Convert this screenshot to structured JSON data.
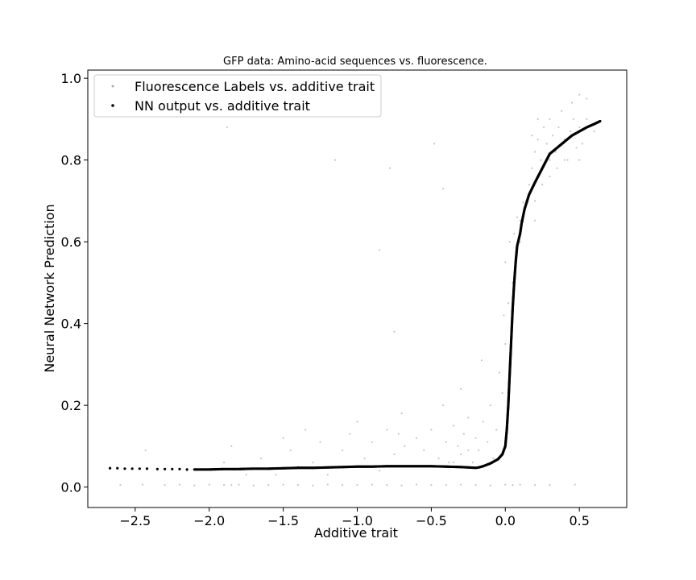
{
  "chart_data": {
    "type": "scatter",
    "title": "GFP data: Amino-acid sequences vs. fluorescence.",
    "xlabel": "Additive trait",
    "ylabel": "Neural Network Prediction",
    "xlim": [
      -2.82,
      0.82
    ],
    "ylim": [
      -0.05,
      1.02
    ],
    "x_ticks": [
      -2.5,
      -2.0,
      -1.5,
      -1.0,
      -0.5,
      0.0,
      0.5
    ],
    "x_tick_labels": [
      "−2.5",
      "−2.0",
      "−1.5",
      "−1.0",
      "−0.5",
      "0.0",
      "0.5"
    ],
    "y_ticks": [
      0.0,
      0.2,
      0.4,
      0.6,
      0.8,
      1.0
    ],
    "y_tick_labels": [
      "0.0",
      "0.2",
      "0.4",
      "0.6",
      "0.8",
      "1.0"
    ],
    "grid": false,
    "legend_position": "top-left",
    "series": [
      {
        "name": "Fluorescence Labels vs. additive trait",
        "color": "#808080",
        "marker": "small-dot",
        "points": [
          [
            -2.6,
            0.005
          ],
          [
            -2.45,
            0.006
          ],
          [
            -2.3,
            0.005
          ],
          [
            -2.2,
            0.006
          ],
          [
            -2.1,
            0.004
          ],
          [
            -2.0,
            0.006
          ],
          [
            -1.9,
            0.005
          ],
          [
            -1.85,
            0.005
          ],
          [
            -1.8,
            0.006
          ],
          [
            -1.7,
            0.004
          ],
          [
            -1.6,
            0.005
          ],
          [
            -1.5,
            0.006
          ],
          [
            -1.4,
            0.005
          ],
          [
            -1.3,
            0.004
          ],
          [
            -1.2,
            0.006
          ],
          [
            -1.1,
            0.005
          ],
          [
            -1.0,
            0.005
          ],
          [
            -0.9,
            0.006
          ],
          [
            -0.8,
            0.005
          ],
          [
            -0.7,
            0.004
          ],
          [
            -0.6,
            0.006
          ],
          [
            -0.5,
            0.005
          ],
          [
            -0.4,
            0.005
          ],
          [
            -0.3,
            0.006
          ],
          [
            -0.2,
            0.005
          ],
          [
            -0.1,
            0.004
          ],
          [
            0.0,
            0.006
          ],
          [
            0.05,
            0.005
          ],
          [
            0.1,
            0.006
          ],
          [
            0.2,
            0.005
          ],
          [
            0.3,
            0.005
          ],
          [
            0.47,
            0.006
          ],
          [
            -2.43,
            0.09
          ],
          [
            -2.15,
            0.04
          ],
          [
            -1.88,
            0.88
          ],
          [
            -1.9,
            0.06
          ],
          [
            -1.85,
            0.1
          ],
          [
            -1.75,
            0.03
          ],
          [
            -1.65,
            0.07
          ],
          [
            -1.55,
            0.03
          ],
          [
            -1.5,
            0.12
          ],
          [
            -1.45,
            0.09
          ],
          [
            -1.4,
            0.05
          ],
          [
            -1.35,
            0.14
          ],
          [
            -1.3,
            0.06
          ],
          [
            -1.25,
            0.11
          ],
          [
            -1.2,
            0.03
          ],
          [
            -1.15,
            0.8
          ],
          [
            -1.1,
            0.09
          ],
          [
            -1.05,
            0.13
          ],
          [
            -1.0,
            0.16
          ],
          [
            -0.95,
            0.07
          ],
          [
            -0.9,
            0.11
          ],
          [
            -0.85,
            0.04
          ],
          [
            -0.8,
            0.14
          ],
          [
            -0.78,
            0.78
          ],
          [
            -0.75,
            0.08
          ],
          [
            -0.7,
            0.18
          ],
          [
            -0.68,
            0.1
          ],
          [
            -0.65,
            0.05
          ],
          [
            -0.6,
            0.12
          ],
          [
            -0.55,
            0.09
          ],
          [
            -0.5,
            0.14
          ],
          [
            -0.48,
            0.84
          ],
          [
            -0.45,
            0.07
          ],
          [
            -0.42,
            0.2
          ],
          [
            -0.4,
            0.11
          ],
          [
            -0.38,
            0.06
          ],
          [
            -0.35,
            0.15
          ],
          [
            -0.32,
            0.1
          ],
          [
            -0.3,
            0.08
          ],
          [
            -0.28,
            0.13
          ],
          [
            -0.25,
            0.17
          ],
          [
            -0.22,
            0.06
          ],
          [
            -0.2,
            0.12
          ],
          [
            -0.18,
            0.09
          ],
          [
            -0.15,
            0.16
          ],
          [
            -0.12,
            0.11
          ],
          [
            -0.1,
            0.2
          ],
          [
            -0.08,
            0.07
          ],
          [
            -0.06,
            0.14
          ],
          [
            -0.04,
            0.28
          ],
          [
            -0.02,
            0.23
          ],
          [
            -0.16,
            0.31
          ],
          [
            -0.3,
            0.24
          ],
          [
            -0.85,
            0.58
          ],
          [
            -0.75,
            0.38
          ],
          [
            -0.42,
            0.73
          ],
          [
            -0.35,
            0.06
          ],
          [
            -0.25,
            0.09
          ],
          [
            -0.72,
            0.13
          ],
          [
            0.0,
            0.35
          ],
          [
            0.02,
            0.45
          ],
          [
            0.0,
            0.55
          ],
          [
            0.03,
            0.6
          ],
          [
            -0.01,
            0.42
          ],
          [
            0.05,
            0.5
          ],
          [
            0.06,
            0.62
          ],
          [
            0.08,
            0.66
          ],
          [
            0.1,
            0.6
          ],
          [
            0.12,
            0.65
          ],
          [
            0.14,
            0.7
          ],
          [
            0.16,
            0.74
          ],
          [
            0.18,
            0.78
          ],
          [
            0.2,
            0.82
          ],
          [
            0.22,
            0.85
          ],
          [
            0.24,
            0.8
          ],
          [
            0.26,
            0.88
          ],
          [
            0.28,
            0.84
          ],
          [
            0.3,
            0.9
          ],
          [
            0.32,
            0.86
          ],
          [
            0.34,
            0.82
          ],
          [
            0.36,
            0.88
          ],
          [
            0.38,
            0.92
          ],
          [
            0.4,
            0.85
          ],
          [
            0.42,
            0.8
          ],
          [
            0.44,
            0.87
          ],
          [
            0.46,
            0.9
          ],
          [
            0.48,
            0.83
          ],
          [
            0.5,
            0.88
          ],
          [
            0.52,
            0.84
          ],
          [
            0.55,
            0.9
          ],
          [
            0.6,
            0.87
          ],
          [
            0.3,
            0.76
          ],
          [
            0.35,
            0.78
          ],
          [
            0.45,
            0.94
          ],
          [
            0.25,
            0.74
          ],
          [
            0.2,
            0.7
          ],
          [
            0.15,
            0.696
          ],
          [
            0.12,
            0.696
          ],
          [
            0.1,
            0.652
          ],
          [
            0.2,
            0.652
          ],
          [
            0.3,
            0.8
          ],
          [
            0.4,
            0.8
          ],
          [
            0.5,
            0.8
          ],
          [
            0.5,
            0.96
          ],
          [
            0.55,
            0.95
          ],
          [
            0.22,
            0.9
          ],
          [
            0.18,
            0.86
          ]
        ]
      },
      {
        "name": "NN output vs. additive trait",
        "color": "#000000",
        "marker": "dot",
        "points": [
          [
            -2.67,
            0.046
          ],
          [
            -2.62,
            0.046
          ],
          [
            -2.57,
            0.045
          ],
          [
            -2.52,
            0.045
          ],
          [
            -2.47,
            0.045
          ],
          [
            -2.42,
            0.045
          ],
          [
            -2.35,
            0.044
          ],
          [
            -2.3,
            0.044
          ],
          [
            -2.25,
            0.044
          ],
          [
            -2.2,
            0.044
          ],
          [
            -2.15,
            0.043
          ],
          [
            -2.1,
            0.043
          ],
          [
            -2.0,
            0.043
          ],
          [
            -1.9,
            0.044
          ],
          [
            -1.8,
            0.044
          ],
          [
            -1.7,
            0.045
          ],
          [
            -1.6,
            0.045
          ],
          [
            -1.5,
            0.046
          ],
          [
            -1.4,
            0.047
          ],
          [
            -1.3,
            0.047
          ],
          [
            -1.2,
            0.048
          ],
          [
            -1.1,
            0.049
          ],
          [
            -1.0,
            0.05
          ],
          [
            -0.9,
            0.05
          ],
          [
            -0.8,
            0.051
          ],
          [
            -0.7,
            0.051
          ],
          [
            -0.6,
            0.051
          ],
          [
            -0.5,
            0.051
          ],
          [
            -0.4,
            0.05
          ],
          [
            -0.3,
            0.049
          ],
          [
            -0.25,
            0.048
          ],
          [
            -0.2,
            0.047
          ],
          [
            -0.18,
            0.048
          ],
          [
            -0.15,
            0.051
          ],
          [
            -0.1,
            0.058
          ],
          [
            -0.05,
            0.068
          ],
          [
            -0.02,
            0.08
          ],
          [
            0.0,
            0.1
          ],
          [
            0.01,
            0.14
          ],
          [
            0.02,
            0.2
          ],
          [
            0.03,
            0.28
          ],
          [
            0.04,
            0.36
          ],
          [
            0.05,
            0.44
          ],
          [
            0.06,
            0.5
          ],
          [
            0.07,
            0.55
          ],
          [
            0.08,
            0.59
          ],
          [
            0.1,
            0.62
          ],
          [
            0.11,
            0.645
          ],
          [
            0.13,
            0.68
          ],
          [
            0.16,
            0.715
          ],
          [
            0.2,
            0.745
          ],
          [
            0.25,
            0.78
          ],
          [
            0.3,
            0.815
          ],
          [
            0.35,
            0.83
          ],
          [
            0.4,
            0.845
          ],
          [
            0.45,
            0.86
          ],
          [
            0.5,
            0.87
          ],
          [
            0.55,
            0.88
          ],
          [
            0.6,
            0.888
          ],
          [
            0.64,
            0.895
          ]
        ]
      }
    ]
  }
}
